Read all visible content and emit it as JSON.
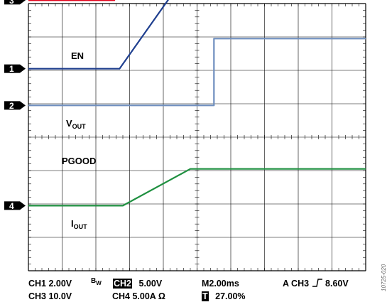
{
  "chart_data": {
    "type": "line",
    "time_per_div_ms": 2.0,
    "x_divisions": 10,
    "y_divisions": 8,
    "grid": true,
    "series": [
      {
        "channel": "CH3",
        "name": "EN",
        "color": "#e2001a",
        "x": [
          0,
          5.1,
          5.1,
          5.2,
          20
        ],
        "y": [
          4.1,
          4.1,
          7.4,
          7.55,
          7.55
        ]
      },
      {
        "channel": "CH1",
        "name": "VOUT",
        "color": "#1f3f8f",
        "x": [
          0,
          5.4,
          9.6,
          20
        ],
        "y": [
          2.05,
          2.05,
          5.05,
          5.05
        ]
      },
      {
        "channel": "CH2",
        "name": "PGOOD",
        "color": "#6f8fbf",
        "x": [
          0,
          11.0,
          11.0,
          20
        ],
        "y": [
          0.95,
          0.95,
          2.95,
          2.95
        ]
      },
      {
        "channel": "CH4",
        "name": "IOUT",
        "color": "#1f9040",
        "x": [
          0,
          5.6,
          9.6,
          20
        ],
        "y": [
          -2.05,
          -2.05,
          -0.95,
          -0.95
        ]
      }
    ],
    "markers": [
      {
        "label": "3",
        "y": 4.1
      },
      {
        "label": "1",
        "y": 2.05
      },
      {
        "label": "2",
        "y": 0.95
      },
      {
        "label": "4",
        "y": -2.05
      }
    ]
  },
  "labels": {
    "en": "EN",
    "vout_main": "V",
    "vout_sub": "OUT",
    "pgood": "PGOOD",
    "iout_main": "I",
    "iout_sub": "OUT"
  },
  "footer": {
    "ch1": "CH1  2.00V",
    "bw_main": "B",
    "bw_sub": "W",
    "ch2_tag": "CH2",
    "ch2_val": "5.00V",
    "timebase": "M2.00ms",
    "trigger_prefix": "A  CH3",
    "trigger_icon": "rising-edge-icon",
    "trigger_level": "8.60V",
    "ch3": "CH3  10.0V",
    "ch4": "CH4  5.00A Ω",
    "t_tag": "T",
    "t_val": "27.00%"
  },
  "figure_id": "10725-020",
  "colors": {
    "en": "#e2001a",
    "vout": "#1f3f8f",
    "pgood": "#6f8fbf",
    "iout": "#1f9040"
  }
}
